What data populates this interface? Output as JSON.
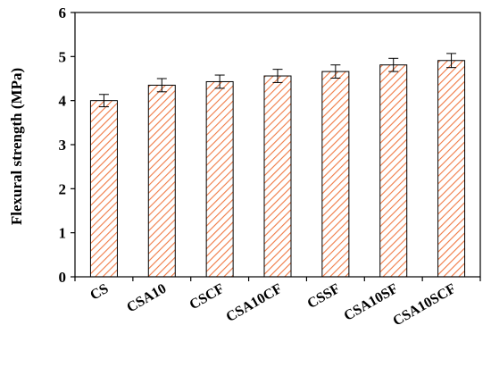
{
  "chart_data": {
    "type": "bar",
    "title": "",
    "xlabel": "",
    "ylabel": "Flexural strength (MPa)",
    "ylim": [
      0,
      6
    ],
    "yticks": [
      0,
      1,
      2,
      3,
      4,
      5,
      6
    ],
    "categories": [
      "CS",
      "CSA10",
      "CSCF",
      "CSA10CF",
      "CSSF",
      "CSA10SF",
      "CSA10SCF"
    ],
    "values": [
      4.0,
      4.35,
      4.43,
      4.56,
      4.66,
      4.81,
      4.91
    ],
    "errors": [
      0.14,
      0.15,
      0.15,
      0.15,
      0.15,
      0.15,
      0.16
    ],
    "grid": false,
    "legend": "none",
    "bar_fill": "hatched",
    "colors": {
      "hatch": "#f07a45",
      "bar_edge": "#000000",
      "axis": "#000000"
    }
  }
}
